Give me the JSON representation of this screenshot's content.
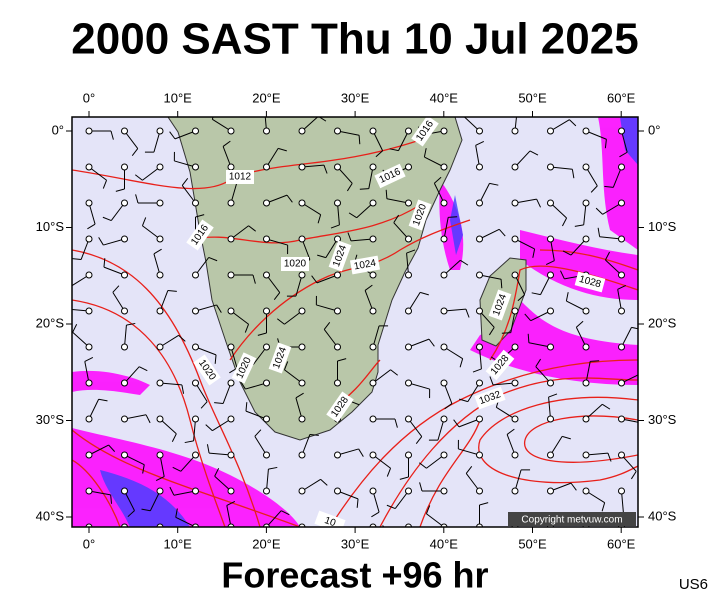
{
  "header": {
    "title": "2000 SAST Thu 10 Jul 2025"
  },
  "map": {
    "lon_labels": [
      "0°",
      "10°E",
      "20°E",
      "30°E",
      "40°E",
      "50°E",
      "60°E"
    ],
    "lat_labels": [
      "0°",
      "10°S",
      "20°S",
      "30°S",
      "40°S"
    ],
    "isobar_labels": [
      "1016",
      "1012",
      "1016",
      "1016",
      "1020",
      "1020",
      "1024",
      "1024",
      "1028",
      "1024",
      "1020",
      "1020",
      "1024",
      "1028",
      "1032",
      "1028",
      "10"
    ],
    "copyright": "Copyright metvuw.com"
  },
  "footer": {
    "forecast": "Forecast +96 hr",
    "code": "US6"
  }
}
